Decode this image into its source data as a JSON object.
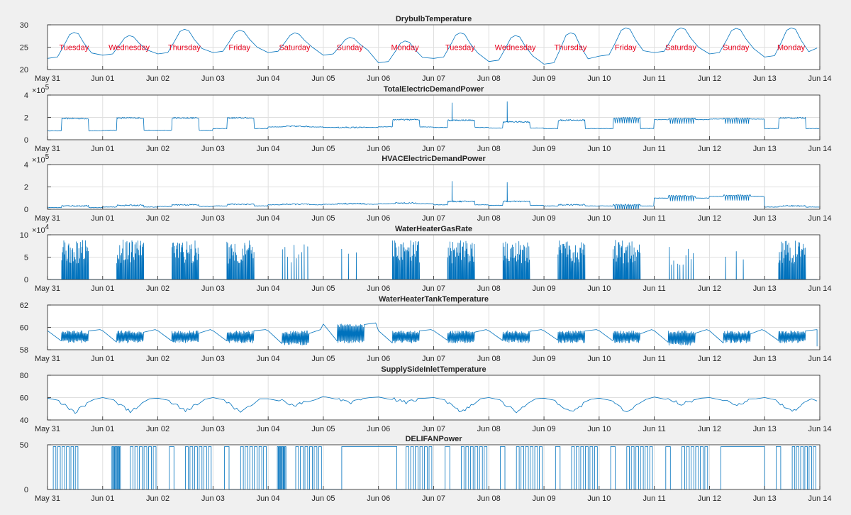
{
  "x_tick_labels": [
    "May 31",
    "Jun 01",
    "Jun 02",
    "Jun 03",
    "Jun 04",
    "Jun 05",
    "Jun 06",
    "Jun 07",
    "Jun 08",
    "Jun 09",
    "Jun 10",
    "Jun 11",
    "Jun 12",
    "Jun 13",
    "Jun 14"
  ],
  "day_names": [
    "Tuesday",
    "Wednesday",
    "Thursday",
    "Friday",
    "Saturday",
    "Sunday",
    "Monday",
    "Tuesday",
    "Wednesday",
    "Thursday",
    "Friday",
    "Saturday",
    "Sunday",
    "Monday"
  ],
  "colors": {
    "line": "#0072bd",
    "day_label": "#e8001c",
    "axes_bg": "#ffffff",
    "figure_bg": "#f0f0f0",
    "grid": "#dfdfdf"
  },
  "chart_data": [
    {
      "type": "line",
      "title": "DrybulbTemperature",
      "x_range": [
        "2016-05-31",
        "2016-06-14"
      ],
      "ylim": [
        20,
        30
      ],
      "yticks": [
        "20",
        "25",
        "30"
      ],
      "grid": true,
      "daily": {
        "min": [
          22.5,
          23.2,
          23.5,
          23.8,
          23.8,
          23.2,
          21.5,
          22.5,
          21.8,
          21.2,
          23.0,
          23.8,
          23.5,
          22.8
        ],
        "max": [
          28.3,
          27.6,
          29.0,
          28.8,
          28.2,
          27.2,
          26.4,
          28.2,
          27.6,
          28.2,
          29.3,
          29.3,
          29.2,
          29.3
        ]
      }
    },
    {
      "type": "line",
      "title": "TotalElectricDemandPower",
      "x_range": [
        "2016-05-31",
        "2016-06-14"
      ],
      "ylim": [
        0,
        4
      ],
      "yticks": [
        "0",
        "2",
        "4"
      ],
      "y_multiplier": "×10^5",
      "y_multiplier_base": "×10",
      "y_multiplier_exp": "5",
      "grid": true,
      "daily": {
        "base": [
          0.8,
          0.85,
          0.85,
          1.0,
          1.15,
          1.1,
          1.15,
          1.1,
          1.05,
          1.0,
          1.0,
          1.8,
          1.85,
          1.0
        ],
        "peak": [
          1.9,
          1.95,
          1.95,
          1.95,
          1.2,
          1.1,
          1.8,
          1.75,
          1.6,
          1.75,
          1.95,
          1.9,
          1.9,
          1.95
        ]
      },
      "spikes": [
        {
          "x": "2016-06-07 08:00",
          "value": 3.3
        },
        {
          "x": "2016-06-08 08:00",
          "value": 3.4
        }
      ]
    },
    {
      "type": "line",
      "title": "HVACElectricDemandPower",
      "x_range": [
        "2016-05-31",
        "2016-06-14"
      ],
      "ylim": [
        0,
        4
      ],
      "yticks": [
        "0",
        "2",
        "4"
      ],
      "y_multiplier": "×10^5",
      "y_multiplier_base": "×10",
      "y_multiplier_exp": "5",
      "grid": true,
      "daily": {
        "base": [
          0.15,
          0.2,
          0.25,
          0.3,
          0.4,
          0.45,
          0.5,
          0.4,
          0.35,
          0.3,
          0.3,
          1.0,
          1.15,
          0.2
        ],
        "peak": [
          0.3,
          0.35,
          0.4,
          0.45,
          0.45,
          0.5,
          0.55,
          0.7,
          0.7,
          0.4,
          0.4,
          1.2,
          1.25,
          0.3
        ]
      },
      "spikes": [
        {
          "x": "2016-06-07 08:00",
          "value": 2.5
        },
        {
          "x": "2016-06-08 08:00",
          "value": 2.4
        }
      ]
    },
    {
      "type": "line",
      "title": "WaterHeaterGasRate",
      "x_range": [
        "2016-05-31",
        "2016-06-14"
      ],
      "ylim": [
        0,
        10
      ],
      "yticks": [
        "0",
        "5",
        "10"
      ],
      "y_multiplier": "×10^4",
      "y_multiplier_base": "×10",
      "y_multiplier_exp": "4",
      "grid": true,
      "daily": {
        "pulse_max": [
          8.8,
          8.9,
          8.9,
          8.8,
          8.0,
          7.8,
          8.8,
          8.8,
          8.7,
          8.8,
          8.8,
          8.0,
          6.5,
          8.7
        ],
        "pulses": [
          38,
          38,
          38,
          38,
          10,
          3,
          38,
          38,
          38,
          38,
          38,
          10,
          3,
          38
        ]
      }
    },
    {
      "type": "line",
      "title": "WaterHeaterTankTemperature",
      "x_range": [
        "2016-05-31",
        "2016-06-14"
      ],
      "ylim": [
        58,
        62
      ],
      "yticks": [
        "58",
        "60",
        "62"
      ],
      "grid": true,
      "daily": {
        "band": [
          [
            58.6,
            59.7
          ],
          [
            58.6,
            59.7
          ],
          [
            58.6,
            59.7
          ],
          [
            58.6,
            59.7
          ],
          [
            58.4,
            59.7
          ],
          [
            58.6,
            60.3
          ],
          [
            58.6,
            59.7
          ],
          [
            58.6,
            59.7
          ],
          [
            58.6,
            59.7
          ],
          [
            58.6,
            59.7
          ],
          [
            58.6,
            59.7
          ],
          [
            58.4,
            59.7
          ],
          [
            58.6,
            59.7
          ],
          [
            58.6,
            59.7
          ]
        ]
      }
    },
    {
      "type": "line",
      "title": "SupplySideInletTemperature",
      "x_range": [
        "2016-05-31",
        "2016-06-14"
      ],
      "ylim": [
        40,
        80
      ],
      "yticks": [
        "40",
        "60",
        "80"
      ],
      "grid": true,
      "daily": {
        "high": [
          59.5,
          60.0,
          59.5,
          60.0,
          59.0,
          61.0,
          60.5,
          60.0,
          60.0,
          59.5,
          59.5,
          60.5,
          60.0,
          60.0
        ],
        "low": [
          43,
          43,
          44,
          43,
          51,
          54,
          54,
          43,
          43,
          43,
          43,
          52,
          52,
          43
        ]
      }
    },
    {
      "type": "line",
      "title": "DELIFANPower",
      "x_range": [
        "2016-05-31",
        "2016-06-14"
      ],
      "ylim": [
        0,
        50
      ],
      "yticks": [
        "0",
        "50"
      ],
      "grid": true,
      "on_value": 48,
      "on_periods": [
        [
          "2016-05-31 02:30",
          "2016-05-31 14:00"
        ],
        [
          "2016-06-01 04:00",
          "2016-06-01 08:00"
        ],
        [
          "2016-06-01 12:00",
          "2016-06-02 00:00"
        ],
        [
          "2016-06-02 05:00",
          "2016-06-02 07:00"
        ],
        [
          "2016-06-02 12:00",
          "2016-06-03 00:00"
        ],
        [
          "2016-06-03 05:00",
          "2016-06-03 07:00"
        ],
        [
          "2016-06-03 12:00",
          "2016-06-04 00:00"
        ],
        [
          "2016-06-04 04:00",
          "2016-06-04 08:00"
        ],
        [
          "2016-06-04 12:00",
          "2016-06-05 00:00"
        ],
        [
          "2016-06-05 08:00",
          "2016-06-06 08:00"
        ],
        [
          "2016-06-06 12:00",
          "2016-06-07 00:00"
        ],
        [
          "2016-06-07 05:00",
          "2016-06-07 07:00"
        ],
        [
          "2016-06-07 12:00",
          "2016-06-08 00:00"
        ],
        [
          "2016-06-08 05:00",
          "2016-06-08 07:00"
        ],
        [
          "2016-06-08 12:00",
          "2016-06-09 00:00"
        ],
        [
          "2016-06-09 05:00",
          "2016-06-09 07:00"
        ],
        [
          "2016-06-09 12:00",
          "2016-06-10 00:00"
        ],
        [
          "2016-06-10 05:00",
          "2016-06-10 07:00"
        ],
        [
          "2016-06-10 12:00",
          "2016-06-11 00:00"
        ],
        [
          "2016-06-11 05:00",
          "2016-06-11 07:00"
        ],
        [
          "2016-06-11 12:00",
          "2016-06-12 00:00"
        ],
        [
          "2016-06-12 05:00",
          "2016-06-13 00:00"
        ],
        [
          "2016-06-13 05:00",
          "2016-06-13 07:00"
        ],
        [
          "2016-06-13 12:00",
          "2016-06-13 23:00"
        ]
      ]
    }
  ]
}
